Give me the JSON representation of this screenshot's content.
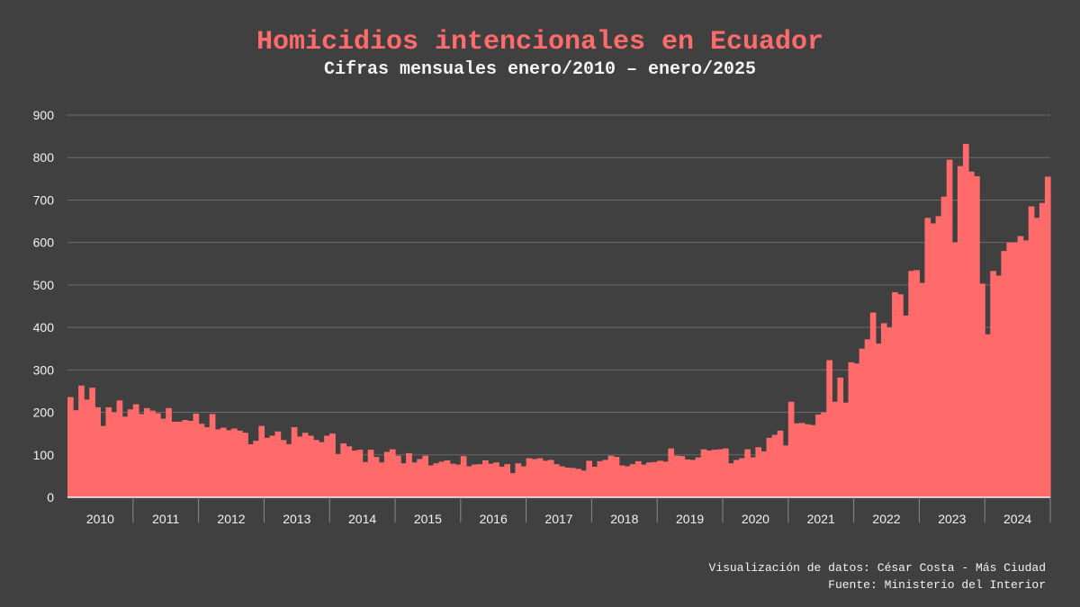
{
  "chart_data": {
    "type": "bar",
    "title": "Homicidios intencionales en Ecuador",
    "subtitle": "Cifras mensuales enero/2010 – enero/2025",
    "xlabel": "",
    "ylabel": "",
    "ylim": [
      0,
      900
    ],
    "yticks": [
      0,
      100,
      200,
      300,
      400,
      500,
      600,
      700,
      800,
      900
    ],
    "grid": true,
    "x_start": "2010-01",
    "x_end": "2025-01",
    "year_labels": [
      "2010",
      "2011",
      "2012",
      "2013",
      "2014",
      "2015",
      "2016",
      "2017",
      "2018",
      "2019",
      "2020",
      "2021",
      "2022",
      "2023",
      "2024"
    ],
    "bar_color": "#ff6b6b",
    "series": [
      {
        "values": [
          236,
          205,
          263,
          230,
          258,
          212,
          168,
          212,
          200,
          228,
          190,
          207,
          219,
          196,
          210,
          204,
          198,
          185,
          210,
          178,
          178,
          182,
          180,
          197,
          173,
          165,
          196,
          160,
          164,
          158,
          162,
          157,
          152,
          125,
          133,
          168,
          140,
          145,
          155,
          135,
          125,
          165,
          143,
          152,
          145,
          135,
          130,
          145,
          150,
          102,
          127,
          120,
          110,
          112,
          83,
          112,
          95,
          82,
          107,
          113,
          98,
          80,
          104,
          82,
          90,
          98,
          75,
          80,
          84,
          87,
          79,
          77,
          97,
          73,
          77,
          78,
          87,
          79,
          82,
          72,
          78,
          57,
          80,
          73,
          92,
          90,
          92,
          86,
          88,
          78,
          73,
          70,
          69,
          67,
          63,
          86,
          72,
          85,
          88,
          98,
          95,
          75,
          73,
          78,
          85,
          77,
          82,
          83,
          86,
          84,
          115,
          98,
          97,
          89,
          88,
          94,
          113,
          110,
          112,
          113,
          115,
          80,
          88,
          92,
          113,
          94,
          118,
          108,
          140,
          147,
          157,
          122,
          225,
          174,
          175,
          172,
          170,
          195,
          200,
          323,
          225,
          282,
          223,
          318,
          315,
          350,
          372,
          435,
          362,
          410,
          400,
          483,
          478,
          428,
          533,
          535,
          505,
          658,
          645,
          662,
          708,
          795,
          600,
          780,
          832,
          767,
          756,
          503,
          384,
          533,
          522,
          580,
          600,
          600,
          615,
          605,
          685,
          658,
          693,
          755
        ]
      }
    ]
  },
  "credits": {
    "line1": "Visualización de datos: César Costa - Más Ciudad",
    "line2": "Fuente: Ministerio del Interior"
  }
}
